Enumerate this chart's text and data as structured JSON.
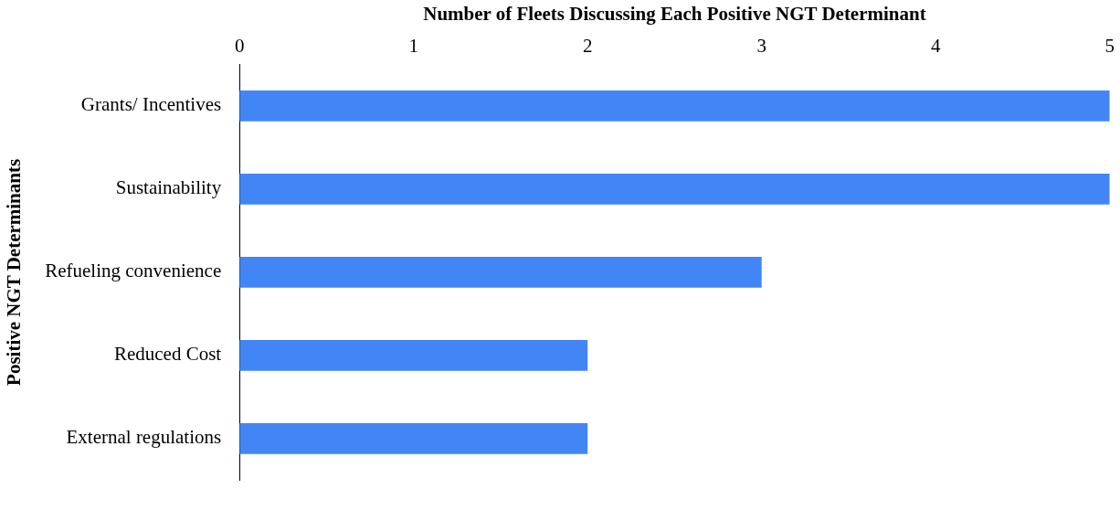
{
  "chart_data": {
    "type": "bar",
    "orientation": "horizontal",
    "xlabel": "Number of Fleets Discussing Each Positive NGT Determinant",
    "ylabel": "Positive NGT Determinants",
    "categories": [
      "Grants/ Incentives",
      "Sustainability",
      "Refueling convenience",
      "Reduced Cost",
      "External regulations"
    ],
    "values": [
      5,
      5,
      3,
      2,
      2
    ],
    "color": "#4285f4",
    "xlim": [
      0,
      5
    ],
    "xticks": [
      0,
      1,
      2,
      3,
      4,
      5
    ]
  }
}
